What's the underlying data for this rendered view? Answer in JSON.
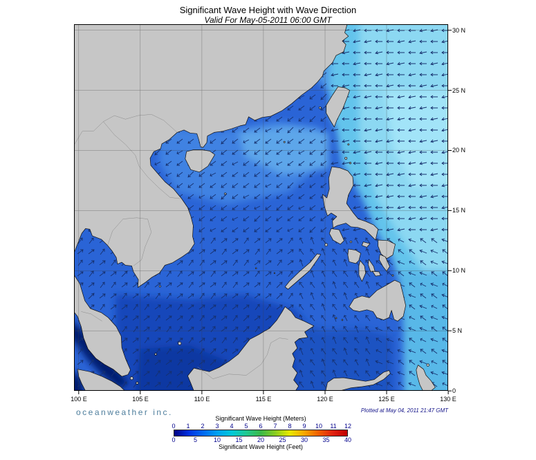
{
  "header": {
    "title": "Significant Wave Height with Wave Direction",
    "subtitle": "Valid For May-05-2011 06:00 GMT"
  },
  "map": {
    "lat_labels": [
      "30 N",
      "25 N",
      "20 N",
      "15 N",
      "10 N",
      "5 N",
      "0"
    ],
    "lon_labels": [
      "100 E",
      "105 E",
      "110 E",
      "115 E",
      "120 E",
      "125 E",
      "130 E"
    ],
    "lon_range": [
      100,
      130
    ],
    "lat_range": [
      0,
      30
    ]
  },
  "legend": {
    "meters_title": "Significant Wave Height (Meters)",
    "feet_title": "Significant Wave Height (Feet)",
    "meters_ticks": [
      "0",
      "1",
      "2",
      "3",
      "4",
      "5",
      "6",
      "7",
      "8",
      "9",
      "10",
      "11",
      "12"
    ],
    "feet_ticks": [
      "0",
      "5",
      "10",
      "15",
      "20",
      "25",
      "30",
      "35",
      "40"
    ],
    "gradient_stops": [
      "#000082",
      "#0030e0",
      "#0068f0",
      "#00a0f0",
      "#00c8d8",
      "#20c890",
      "#38b848",
      "#88cc20",
      "#e8e800",
      "#f8a800",
      "#f06000",
      "#e02010",
      "#c00000"
    ]
  },
  "footer": {
    "brand": "oceanweather inc.",
    "plotted": "Plotted at May 04, 2011 21:47 GMT"
  },
  "colors": {
    "ocean_base": "#2a64d6",
    "land": "#c6c6c6",
    "arrow": "#16306e"
  }
}
